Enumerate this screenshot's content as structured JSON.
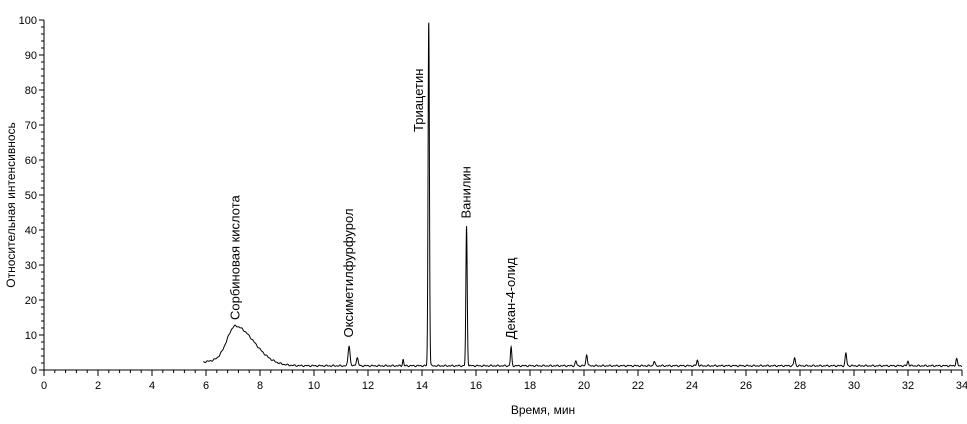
{
  "chart_data": {
    "type": "line",
    "title": "",
    "xlabel": "Время, мин",
    "ylabel": "Относительная интенсивнось",
    "xlim": [
      0,
      34
    ],
    "ylim": [
      0,
      100
    ],
    "x_ticks_major": [
      0,
      2,
      4,
      6,
      8,
      10,
      12,
      14,
      16,
      18,
      20,
      22,
      24,
      26,
      28,
      30,
      32,
      34
    ],
    "x_tick_labels": [
      "0",
      "2",
      "4",
      "6",
      "8",
      "10",
      "12",
      "14",
      "16",
      "18",
      "20",
      "22",
      "24",
      "26",
      "28",
      "30",
      "32",
      "34"
    ],
    "y_ticks_major": [
      0,
      10,
      20,
      30,
      40,
      50,
      60,
      70,
      80,
      90,
      100
    ],
    "y_tick_labels": [
      "0",
      "10",
      "20",
      "30",
      "40",
      "50",
      "60",
      "70",
      "80",
      "90",
      "100"
    ],
    "grid": false,
    "legend": "none",
    "baseline_start": 5.9,
    "baseline_level": 1.2,
    "peaks": [
      {
        "x": 7.1,
        "y": 12,
        "width": 0.45,
        "label": "Сорбиновая кислота"
      },
      {
        "x": 11.3,
        "y": 7,
        "width": 0.05,
        "label": "Оксиметилфурфурол"
      },
      {
        "x": 11.6,
        "y": 3.5,
        "width": 0.05,
        "label": ""
      },
      {
        "x": 13.3,
        "y": 3,
        "width": 0.03,
        "label": ""
      },
      {
        "x": 14.25,
        "y": 100,
        "width": 0.035,
        "label": "Триацетин"
      },
      {
        "x": 15.65,
        "y": 41,
        "width": 0.035,
        "label": "Ванилин"
      },
      {
        "x": 17.3,
        "y": 6.5,
        "width": 0.035,
        "label": "Декан-4-олид"
      },
      {
        "x": 19.7,
        "y": 2.5,
        "width": 0.04,
        "label": ""
      },
      {
        "x": 20.1,
        "y": 4.5,
        "width": 0.04,
        "label": ""
      },
      {
        "x": 22.6,
        "y": 2.5,
        "width": 0.04,
        "label": ""
      },
      {
        "x": 24.2,
        "y": 2.8,
        "width": 0.04,
        "label": ""
      },
      {
        "x": 27.8,
        "y": 3.5,
        "width": 0.04,
        "label": ""
      },
      {
        "x": 29.7,
        "y": 4.8,
        "width": 0.04,
        "label": ""
      },
      {
        "x": 32.0,
        "y": 2.5,
        "width": 0.04,
        "label": ""
      },
      {
        "x": 33.8,
        "y": 3.2,
        "width": 0.04,
        "label": ""
      }
    ]
  }
}
